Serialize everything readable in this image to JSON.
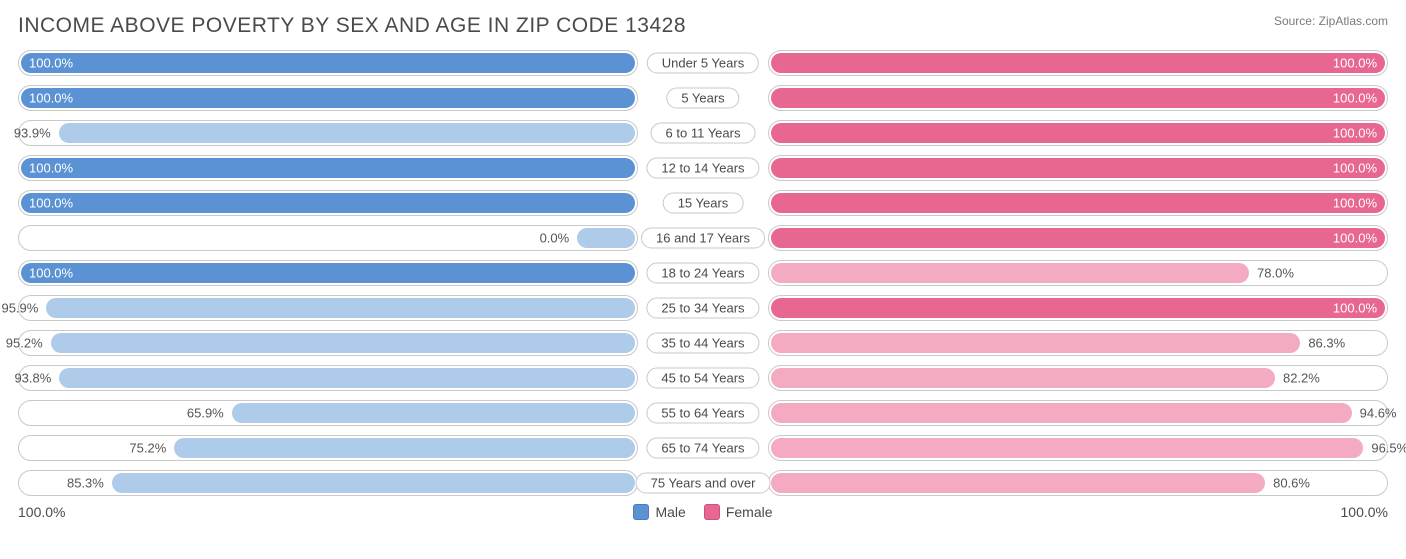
{
  "title": "INCOME ABOVE POVERTY BY SEX AND AGE IN ZIP CODE 13428",
  "source": "Source: ZipAtlas.com",
  "colors": {
    "male_full": "#5b92d3",
    "male_light": "#aecbea",
    "female_full": "#e86790",
    "female_light": "#f4abc1",
    "track_border": "#c9c9c9",
    "text": "#4a4a4a"
  },
  "axis": {
    "left_end": "100.0%",
    "right_end": "100.0%"
  },
  "legend": {
    "male": "Male",
    "female": "Female"
  },
  "rows": [
    {
      "label": "Under 5 Years",
      "male": 100.0,
      "female": 100.0
    },
    {
      "label": "5 Years",
      "male": 100.0,
      "female": 100.0
    },
    {
      "label": "6 to 11 Years",
      "male": 93.9,
      "female": 100.0
    },
    {
      "label": "12 to 14 Years",
      "male": 100.0,
      "female": 100.0
    },
    {
      "label": "15 Years",
      "male": 100.0,
      "female": 100.0
    },
    {
      "label": "16 and 17 Years",
      "male": 0.0,
      "female": 100.0
    },
    {
      "label": "18 to 24 Years",
      "male": 100.0,
      "female": 78.0
    },
    {
      "label": "25 to 34 Years",
      "male": 95.9,
      "female": 100.0
    },
    {
      "label": "35 to 44 Years",
      "male": 95.2,
      "female": 86.3
    },
    {
      "label": "45 to 54 Years",
      "male": 93.8,
      "female": 82.2
    },
    {
      "label": "55 to 64 Years",
      "male": 65.9,
      "female": 94.6
    },
    {
      "label": "65 to 74 Years",
      "male": 75.2,
      "female": 96.5
    },
    {
      "label": "75 Years and over",
      "male": 85.3,
      "female": 80.6
    }
  ],
  "min_bar_pct": 10
}
